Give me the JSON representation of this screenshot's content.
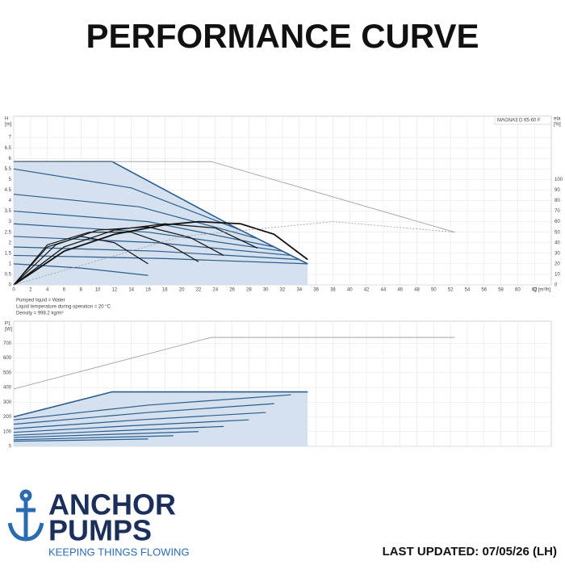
{
  "page": {
    "title": "PERFORMANCE CURVE",
    "brand_top": "ANCHOR",
    "brand_bottom": "PUMPS",
    "tagline": "KEEPING THINGS FLOWING",
    "updated": "LAST UPDATED: 07/05/26 (LH)",
    "notes": [
      "Pumped liquid = Water",
      "Liquid temperature during operation = 20 °C",
      "Density = 998.2 kg/m³"
    ]
  },
  "chart_data": [
    {
      "type": "line",
      "legend_box": "MAGNA3 D 65-60 F",
      "ylabel": [
        "H",
        "[m]"
      ],
      "y2label": [
        "eta",
        "[%]"
      ],
      "xlabel": "Q [m³/h]",
      "xlim": [
        0,
        64
      ],
      "xticks": [
        0,
        2,
        4,
        6,
        8,
        10,
        12,
        14,
        16,
        18,
        20,
        22,
        24,
        26,
        28,
        30,
        32,
        34,
        36,
        38,
        40,
        42,
        44,
        46,
        48,
        50,
        52,
        54,
        56,
        58,
        60,
        62
      ],
      "ylim": [
        0,
        8
      ],
      "yticks": [
        0,
        0.5,
        1.0,
        1.5,
        2.0,
        2.5,
        3.0,
        3.5,
        4.0,
        4.5,
        5.0,
        5.5,
        6.0,
        6.5,
        7.0
      ],
      "y2lim": [
        0,
        160
      ],
      "y2ticks": [
        0,
        10,
        20,
        30,
        40,
        50,
        60,
        70,
        80,
        90,
        100
      ],
      "grid": true,
      "series": [
        {
          "color": "#2a5d8f",
          "width": 1.6,
          "fill": "#d5e1ee",
          "x": [
            0,
            11.7,
            26,
            35
          ],
          "values": [
            5.85,
            5.85,
            2.8,
            1.0
          ]
        },
        {
          "color": "#999999",
          "width": 0.8,
          "x": [
            0,
            23.5,
            52.5
          ],
          "values": [
            5.85,
            5.85,
            2.5
          ]
        },
        {
          "color": "#2a5d8f",
          "width": 1.2,
          "x": [
            0,
            14,
            27
          ],
          "values": [
            5.5,
            4.6,
            2.6
          ]
        },
        {
          "color": "#2a5d8f",
          "width": 1.2,
          "x": [
            0,
            15,
            29
          ],
          "values": [
            4.3,
            3.7,
            2.2
          ]
        },
        {
          "color": "#2a5d8f",
          "width": 1.2,
          "x": [
            0,
            16,
            31
          ],
          "values": [
            3.5,
            3.0,
            1.8
          ]
        },
        {
          "color": "#2a5d8f",
          "width": 1.2,
          "x": [
            0,
            16,
            32
          ],
          "values": [
            2.9,
            2.5,
            1.6
          ]
        },
        {
          "color": "#2a5d8f",
          "width": 1.2,
          "x": [
            0,
            17,
            33
          ],
          "values": [
            2.3,
            2.0,
            1.4
          ]
        },
        {
          "color": "#2a5d8f",
          "width": 1.2,
          "x": [
            0,
            17,
            34
          ],
          "values": [
            1.8,
            1.6,
            1.2
          ]
        },
        {
          "color": "#2a5d8f",
          "width": 1.2,
          "x": [
            0,
            18,
            35
          ],
          "values": [
            1.4,
            1.25,
            1.0
          ]
        },
        {
          "color": "#2a5d8f",
          "width": 1.2,
          "x": [
            0,
            8,
            16
          ],
          "values": [
            1.0,
            0.8,
            0.45
          ]
        },
        {
          "color": "#111111",
          "width": 1.8,
          "axis": "y2",
          "x": [
            0,
            6,
            12,
            18,
            22,
            27,
            31,
            35
          ],
          "values": [
            0,
            32,
            48,
            57,
            60,
            58,
            48,
            24
          ]
        },
        {
          "color": "#111111",
          "width": 1.2,
          "axis": "y2",
          "x": [
            0,
            6,
            12,
            18,
            24,
            29
          ],
          "values": [
            0,
            36,
            52,
            58,
            54,
            35
          ]
        },
        {
          "color": "#111111",
          "width": 1.2,
          "axis": "y2",
          "x": [
            0,
            5,
            10,
            16,
            21,
            25
          ],
          "values": [
            0,
            38,
            52,
            55,
            45,
            28
          ]
        },
        {
          "color": "#111111",
          "width": 1.2,
          "axis": "y2",
          "x": [
            0,
            4,
            9,
            14,
            19,
            22
          ],
          "values": [
            0,
            38,
            50,
            50,
            36,
            22
          ]
        },
        {
          "color": "#111111",
          "width": 1.2,
          "axis": "y2",
          "x": [
            0,
            4,
            8,
            12,
            16
          ],
          "values": [
            0,
            36,
            46,
            40,
            20
          ]
        },
        {
          "color": "#999999",
          "width": 0.8,
          "axis": "y2",
          "dash": true,
          "x": [
            0,
            20,
            38,
            52.5
          ],
          "values": [
            0,
            46,
            60,
            50
          ]
        }
      ]
    },
    {
      "type": "line",
      "ylabel": [
        "P1",
        "[W]"
      ],
      "xlim": [
        0,
        64
      ],
      "ylim": [
        0,
        850
      ],
      "yticks": [
        0,
        100,
        200,
        300,
        400,
        500,
        600,
        700
      ],
      "grid": true,
      "series": [
        {
          "color": "#999999",
          "width": 0.8,
          "x": [
            0,
            23.5,
            52.5
          ],
          "values": [
            390,
            740,
            740
          ]
        },
        {
          "color": "#2a5d8f",
          "width": 1.6,
          "fill": "#d5e1ee",
          "x": [
            0,
            11.7,
            35
          ],
          "values": [
            200,
            370,
            370
          ]
        },
        {
          "color": "#2a5d8f",
          "width": 1.2,
          "x": [
            0,
            16,
            33
          ],
          "values": [
            180,
            280,
            350
          ]
        },
        {
          "color": "#2a5d8f",
          "width": 1.2,
          "x": [
            0,
            16,
            31
          ],
          "values": [
            150,
            230,
            290
          ]
        },
        {
          "color": "#2a5d8f",
          "width": 1.2,
          "x": [
            0,
            15,
            30
          ],
          "values": [
            120,
            180,
            230
          ]
        },
        {
          "color": "#2a5d8f",
          "width": 1.2,
          "x": [
            0,
            14,
            28
          ],
          "values": [
            95,
            140,
            180
          ]
        },
        {
          "color": "#2a5d8f",
          "width": 1.2,
          "x": [
            0,
            12,
            25
          ],
          "values": [
            75,
            105,
            135
          ]
        },
        {
          "color": "#2a5d8f",
          "width": 1.2,
          "x": [
            0,
            11,
            22
          ],
          "values": [
            60,
            80,
            100
          ]
        },
        {
          "color": "#2a5d8f",
          "width": 1.2,
          "x": [
            0,
            9,
            19
          ],
          "values": [
            45,
            58,
            72
          ]
        },
        {
          "color": "#2a5d8f",
          "width": 1.2,
          "x": [
            0,
            8,
            16
          ],
          "values": [
            35,
            42,
            50
          ]
        }
      ]
    }
  ]
}
